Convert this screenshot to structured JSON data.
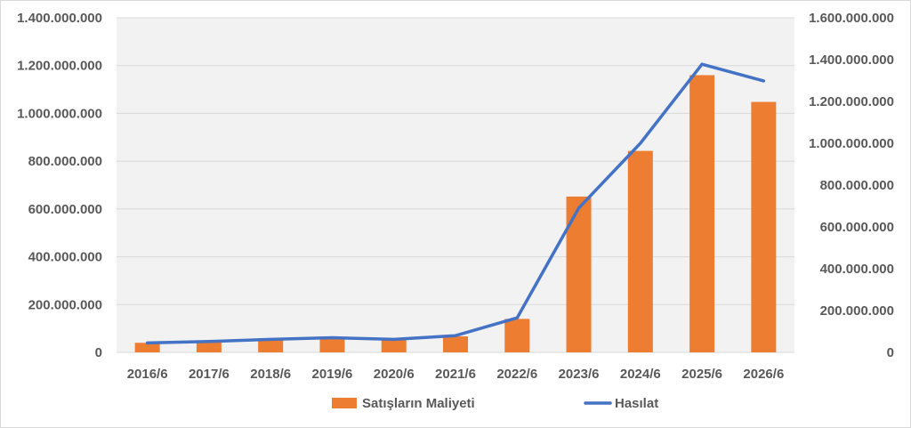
{
  "chart_data": {
    "type": "bar+line",
    "categories": [
      "2016/6",
      "2017/6",
      "2018/6",
      "2019/6",
      "2020/6",
      "2021/6",
      "2022/6",
      "2023/6",
      "2024/6",
      "2025/6",
      "2026/6"
    ],
    "series": [
      {
        "name": "Satışların Maliyeti",
        "type": "bar",
        "axis": "left",
        "color": "#ED7D31",
        "values": [
          40000000,
          44000000,
          52000000,
          60000000,
          52000000,
          67000000,
          140000000,
          652000000,
          843000000,
          1160000000,
          1048000000
        ]
      },
      {
        "name": "Hasılat",
        "type": "line",
        "axis": "right",
        "color": "#4472C4",
        "values": [
          45000000,
          52000000,
          62000000,
          70000000,
          62000000,
          80000000,
          165000000,
          690000000,
          1000000000,
          1378000000,
          1298000000
        ]
      }
    ],
    "y_left": {
      "ylim": [
        0,
        1400000000
      ],
      "ticks": [
        0,
        200000000,
        400000000,
        600000000,
        800000000,
        1000000000,
        1200000000,
        1400000000
      ],
      "tick_labels": [
        "0",
        "200.000.000",
        "400.000.000",
        "600.000.000",
        "800.000.000",
        "1.000.000.000",
        "1.200.000.000",
        "1.400.000.000"
      ]
    },
    "y_right": {
      "ylim": [
        0,
        1600000000
      ],
      "ticks": [
        0,
        200000000,
        400000000,
        600000000,
        800000000,
        1000000000,
        1200000000,
        1400000000,
        1600000000
      ],
      "tick_labels": [
        "0",
        "200.000.000",
        "400.000.000",
        "600.000.000",
        "800.000.000",
        "1.000.000.000",
        "1.200.000.000",
        "1.400.000.000",
        "1.600.000.000"
      ]
    },
    "grid": true,
    "plot_background": "#F2F2F2",
    "gridline_color": "#D9D9D9",
    "legend": {
      "position": "bottom",
      "entries": [
        "Satışların Maliyeti",
        "Hasılat"
      ]
    }
  }
}
